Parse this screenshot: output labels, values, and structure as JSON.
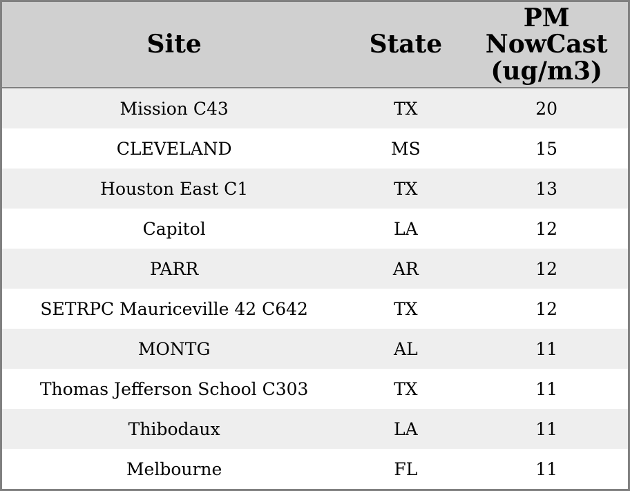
{
  "chart_data": {
    "type": "table",
    "columns": [
      "Site",
      "State",
      "PM NowCast (ug/m3)"
    ],
    "rows": [
      [
        "Mission C43",
        "TX",
        20
      ],
      [
        "CLEVELAND",
        "MS",
        15
      ],
      [
        "Houston East C1",
        "TX",
        13
      ],
      [
        "Capitol",
        "LA",
        12
      ],
      [
        "PARR",
        "AR",
        12
      ],
      [
        "SETRPC Mauriceville 42 C642",
        "TX",
        12
      ],
      [
        "MONTG",
        "AL",
        11
      ],
      [
        "Thomas Jefferson School C303",
        "TX",
        11
      ],
      [
        "Thibodaux",
        "LA",
        11
      ],
      [
        "Melbourne",
        "FL",
        11
      ]
    ],
    "title": "",
    "legend": null,
    "grid": "horizontal-banding-only"
  },
  "header_display": {
    "site": "Site",
    "state": "State",
    "pm_lines": [
      "PM",
      "NowCast",
      "(ug/m3)"
    ]
  },
  "colors": {
    "outer_border": "#808080",
    "header_background": "#d0d0d0",
    "header_separator": "#808080",
    "row_alt_background": "#eeeeee",
    "row_background": "#ffffff",
    "text": "#000000"
  }
}
